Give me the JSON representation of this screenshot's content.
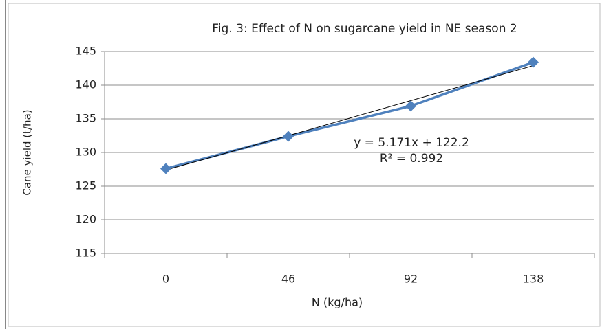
{
  "chart_data": {
    "type": "line",
    "title": "Fig. 3: Effect of N on sugarcane yield in NE season 2",
    "xlabel": "N (kg/ha)",
    "ylabel": "Cane yield (t/ha)",
    "categories": [
      "0",
      "46",
      "92",
      "138"
    ],
    "values": [
      127.6,
      132.4,
      136.9,
      143.4
    ],
    "color": "#4f81bd",
    "trendline": {
      "values": [
        127.4,
        132.5,
        137.7,
        142.9
      ],
      "color": "#000000"
    },
    "annotations": [
      "y = 5.171x + 122.2",
      "R² = 0.992"
    ],
    "ylim": [
      115,
      145
    ],
    "yticks": [
      115,
      120,
      125,
      130,
      135,
      140,
      145
    ],
    "grid": true
  }
}
